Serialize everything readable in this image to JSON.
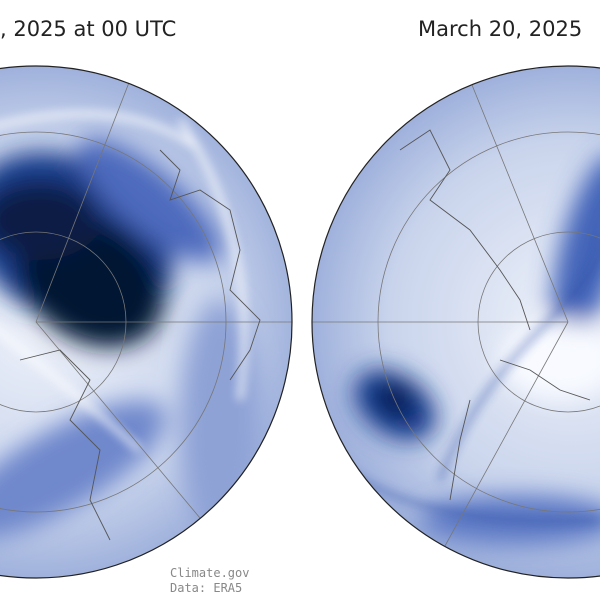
{
  "titles": {
    "left": ", 2025 at 00 UTC",
    "right": "March 20, 2025"
  },
  "credits": {
    "source": "Climate.gov",
    "data": "Data: ERA5"
  }
}
